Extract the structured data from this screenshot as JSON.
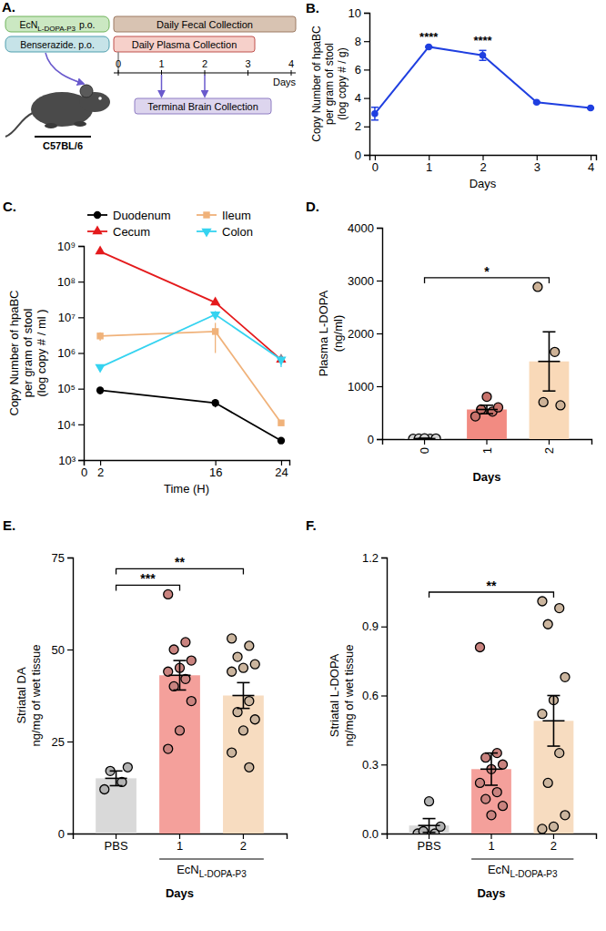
{
  "diagram": {
    "panel_label": "A.",
    "treatments": [
      {
        "text": "EcN",
        "subscript": "L-DOPA-P3",
        "suffix": "p.o."
      },
      {
        "text": "Benserazide. p.o."
      }
    ],
    "collections": [
      "Daily Fecal Collection",
      "Daily Plasma Collection",
      "Terminal Brain Collection"
    ],
    "terminal_days": [
      1,
      2
    ],
    "timeline": {
      "ticks": [
        0,
        1,
        2,
        3,
        4
      ],
      "label": "Days"
    },
    "mouse": "C57BL/6"
  },
  "chart_data": [
    {
      "type": "line",
      "panel_label": "B.",
      "xlabel": "Days",
      "ylabel": [
        "Copy Number of hpaBC",
        "per gram of stool",
        "(log copy # / g)"
      ],
      "x": [
        0,
        1,
        2,
        3,
        4
      ],
      "values": [
        2.9,
        7.6,
        7.0,
        3.7,
        3.3
      ],
      "errors": [
        0.45,
        0.05,
        0.35,
        0.05,
        0.05
      ],
      "color": "#1f3fe0",
      "marker": "circle",
      "xlim": [
        -0.1,
        4.1
      ],
      "xticks": [
        0,
        1,
        2,
        3,
        4
      ],
      "ylim": [
        0,
        10
      ],
      "yticks": [
        0,
        2,
        4,
        6,
        8,
        10
      ],
      "annotations": [
        {
          "text": "****",
          "x": 1
        },
        {
          "text": "****",
          "x": 2
        }
      ]
    },
    {
      "type": "line",
      "panel_label": "C.",
      "xlabel": "Time (H)",
      "ylabel": [
        "Copy Number of hpaBC",
        "per gram of stool",
        "(log copy # / ml )"
      ],
      "log": "y",
      "legend": "top",
      "x": [
        2,
        16,
        24
      ],
      "series": [
        {
          "name": "Duodenum",
          "color": "#000000",
          "marker": "circle",
          "values": [
            90000,
            40000,
            3500
          ],
          "errors": [
            20000,
            10000,
            300
          ]
        },
        {
          "name": "Cecum",
          "color": "#e41a1c",
          "marker": "triangle",
          "values": [
            700000000,
            26000000,
            650000
          ],
          "errors": [
            50000000,
            2000000,
            50000
          ]
        },
        {
          "name": "Ileum",
          "color": "#f0b27a",
          "marker": "square",
          "values": [
            3000000,
            4000000,
            11000
          ],
          "errors": [
            800000,
            3000000,
            1000
          ]
        },
        {
          "name": "Colon",
          "color": "#35d3f0",
          "marker": "triangle-down",
          "values": [
            400000,
            12000000,
            650000
          ],
          "errors": [
            30000,
            3000000,
            250000
          ]
        }
      ],
      "xlim": [
        0,
        25
      ],
      "xticks": [
        0,
        2,
        16,
        24
      ],
      "ylim": [
        1000,
        1000000000
      ],
      "yticks": [
        {
          "value": 1000,
          "label": "10³"
        },
        {
          "value": 10000,
          "label": "10⁴"
        },
        {
          "value": 100000,
          "label": "10⁵"
        },
        {
          "value": 1000000,
          "label": "10⁶"
        },
        {
          "value": 10000000,
          "label": "10⁷"
        },
        {
          "value": 100000000,
          "label": "10⁸"
        },
        {
          "value": 1000000000,
          "label": "10⁹"
        }
      ]
    },
    {
      "type": "bar",
      "panel_label": "D.",
      "xlabel": "Days",
      "ylabel": [
        "Plasma L-DOPA",
        "(ng/ml)"
      ],
      "categories": [
        "0",
        "1",
        "2"
      ],
      "values": [
        10,
        560,
        1470
      ],
      "errors": [
        5,
        80,
        560
      ],
      "points": [
        [
          5,
          8,
          10,
          12,
          15
        ],
        [
          430,
          520,
          560,
          600,
          800
        ],
        [
          2880,
          1650,
          700,
          640
        ]
      ],
      "colors": [
        "#ffffff",
        "#f28b82",
        "#f9d9b8"
      ],
      "ylim": [
        0,
        4000
      ],
      "yticks": [
        0,
        1000,
        2000,
        3000,
        4000
      ],
      "annotations": [
        {
          "text": "*",
          "between": [
            "0",
            "2"
          ]
        }
      ]
    },
    {
      "type": "bar",
      "panel_label": "E.",
      "xlabel": "Days",
      "ylabel": [
        "Striatal DA",
        "ng/mg of wet tissue"
      ],
      "categories": [
        "PBS",
        "1",
        "2"
      ],
      "values": [
        15,
        43,
        37.5
      ],
      "errors": [
        2,
        4,
        3.5
      ],
      "points": [
        [
          12,
          14,
          17,
          18
        ],
        [
          65,
          52,
          50,
          47,
          45,
          44,
          42,
          40,
          36,
          28,
          23
        ],
        [
          53,
          51,
          48,
          46,
          45,
          44,
          36,
          33,
          31,
          28,
          22,
          18
        ]
      ],
      "colors": [
        "#d9d9d9",
        "#f4a09b",
        "#f7dcc0"
      ],
      "group": {
        "text": "EcN",
        "subscript": "L-DOPA-P3",
        "categories": [
          "1",
          "2"
        ]
      },
      "ylim": [
        0,
        75
      ],
      "yticks": [
        0,
        25,
        50,
        75
      ],
      "annotations": [
        {
          "text": "***",
          "between": [
            "PBS",
            "1"
          ]
        },
        {
          "text": "**",
          "between": [
            "PBS",
            "2"
          ]
        }
      ]
    },
    {
      "type": "bar",
      "panel_label": "F.",
      "xlabel": "Days",
      "ylabel": [
        "Striatal L-DOPA",
        "ng/mg of wet tissue"
      ],
      "categories": [
        "PBS",
        "1",
        "2"
      ],
      "values": [
        0.035,
        0.28,
        0.49
      ],
      "errors": [
        0.03,
        0.07,
        0.11
      ],
      "points": [
        [
          0.0,
          0.0,
          0.01,
          0.03,
          0.14
        ],
        [
          0.81,
          0.35,
          0.33,
          0.3,
          0.28,
          0.22,
          0.18,
          0.15,
          0.12,
          0.08
        ],
        [
          1.01,
          0.98,
          0.91,
          0.68,
          0.58,
          0.52,
          0.35,
          0.22,
          0.08,
          0.03,
          0.02
        ]
      ],
      "colors": [
        "#d9d9d9",
        "#f4a09b",
        "#f7dcc0"
      ],
      "group": {
        "text": "EcN",
        "subscript": "L-DOPA-P3",
        "categories": [
          "1",
          "2"
        ]
      },
      "ylim": [
        0,
        1.2
      ],
      "yticks": [
        {
          "value": 0,
          "label": "0.0"
        },
        0.3,
        0.6,
        0.9,
        1.2
      ],
      "annotations": [
        {
          "text": "**",
          "between": [
            "PBS",
            "2"
          ]
        }
      ]
    }
  ]
}
